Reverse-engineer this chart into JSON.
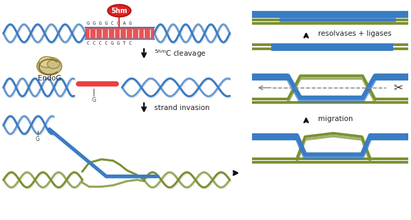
{
  "blue": "#3a7cc4",
  "blue_dark": "#2255a0",
  "green": "#7a9030",
  "green_dark": "#5a7020",
  "red_seg": "#e84040",
  "red_bubble": "#dd2222",
  "gray": "#888888",
  "bg": "#ffffff",
  "arrow_color": "#111111",
  "text_color": "#222222",
  "label_5hm": "5hm",
  "label_cleavage": "$^{5hm}$C cleavage",
  "label_invasion": "strand invasion",
  "label_resolvases": "resolvases + ligases",
  "label_migration": "migration",
  "label_endog": "EndoG",
  "seq_top": "G G G G C C A G",
  "seq_bot": "C C C C G G T C",
  "lw_helix": 2.2,
  "lw_strand": 4.5,
  "lw_thin": 2.8
}
